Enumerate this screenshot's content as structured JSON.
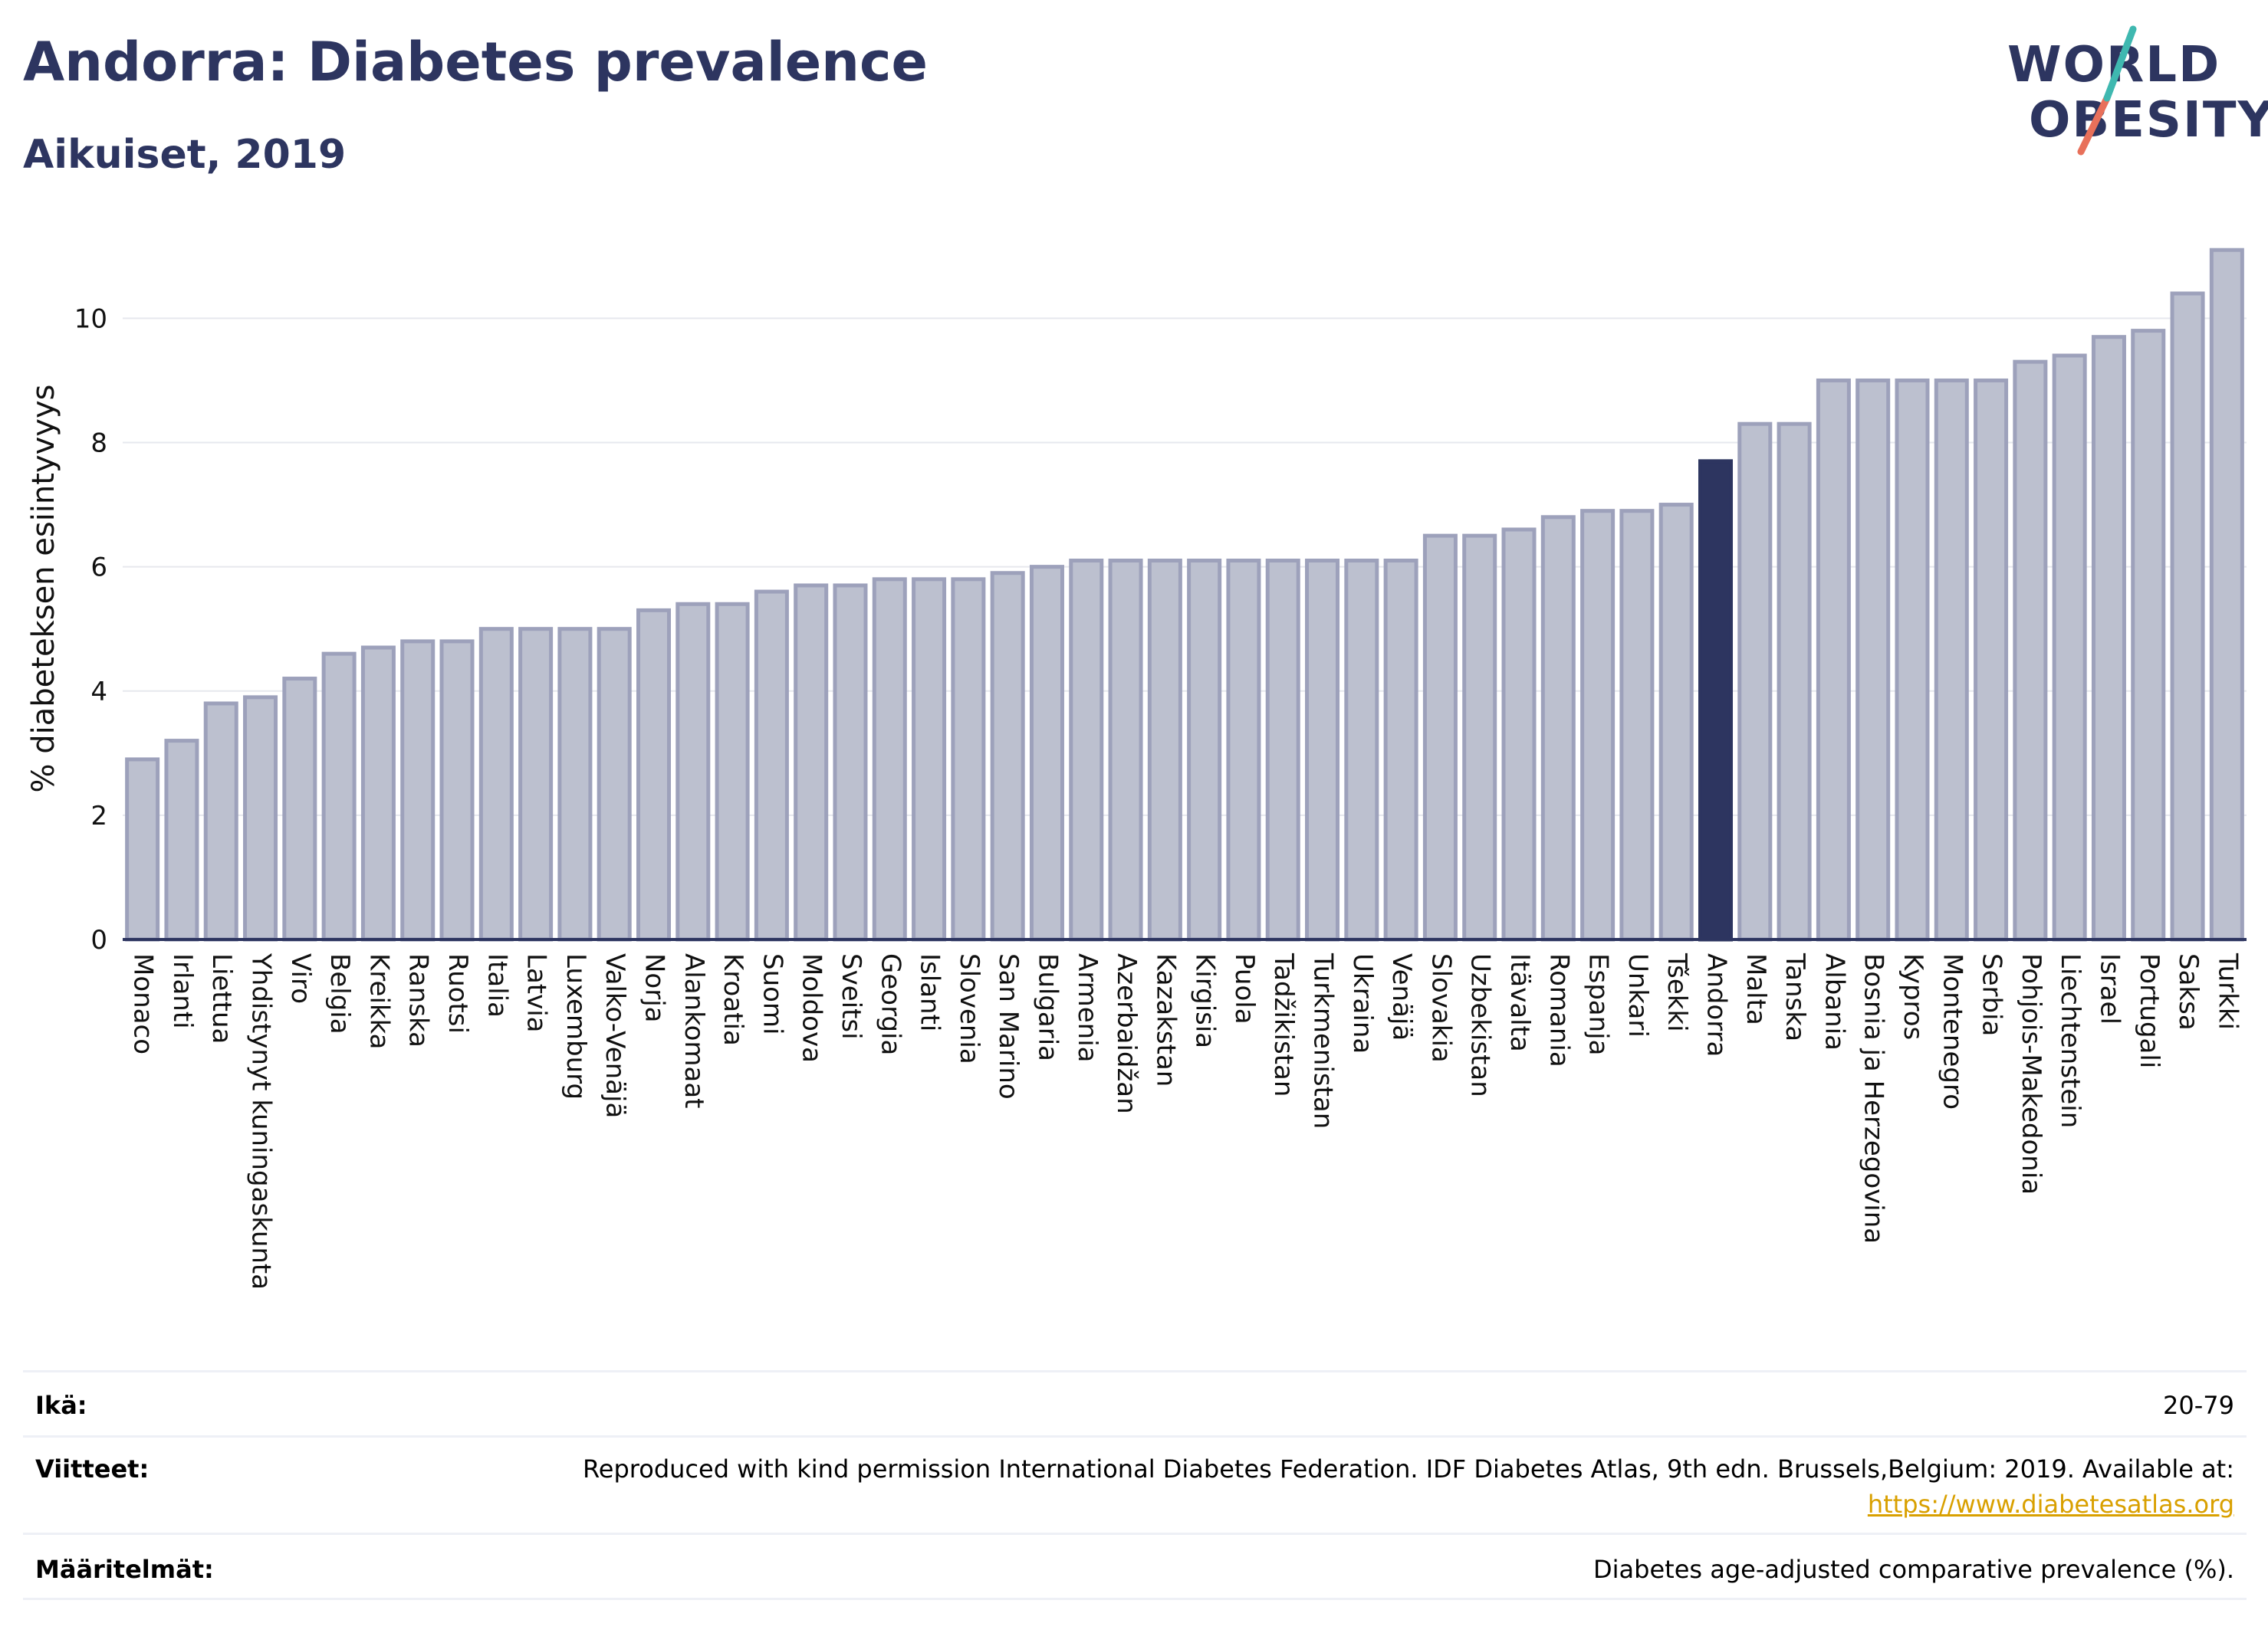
{
  "header": {
    "title": "Andorra: Diabetes prevalence",
    "subtitle": "Aikuiset, 2019"
  },
  "logo": {
    "line1": "WORLD",
    "line2": "OBESITY"
  },
  "colors": {
    "bar": "#bcc0cf",
    "bar_stroke": "#9da1bb",
    "highlight": "#2d3560",
    "title": "#2d3560",
    "link": "#d9a000",
    "logo_slash_teal": "#3fb8b0",
    "logo_slash_coral": "#e8705a"
  },
  "chart_data": {
    "type": "bar",
    "ylabel": "% diabeteksen esiintyvyys",
    "ylim": [
      0,
      11.3
    ],
    "yticks": [
      0,
      2,
      4,
      6,
      8,
      10
    ],
    "highlight": "Andorra",
    "categories": [
      "Monaco",
      "Irlanti",
      "Liettua",
      "Yhdistynyt kuningaskunta",
      "Viro",
      "Belgia",
      "Kreikka",
      "Ranska",
      "Ruotsi",
      "Italia",
      "Latvia",
      "Luxemburg",
      "Valko-Venäjä",
      "Norja",
      "Alankomaat",
      "Kroatia",
      "Suomi",
      "Moldova",
      "Sveitsi",
      "Georgia",
      "Islanti",
      "Slovenia",
      "San Marino",
      "Bulgaria",
      "Armenia",
      "Azerbaidžan",
      "Kazakstan",
      "Kirgisia",
      "Puola",
      "Tadžikistan",
      "Turkmenistan",
      "Ukraina",
      "Venäjä",
      "Slovakia",
      "Uzbekistan",
      "Itävalta",
      "Romania",
      "Espanja",
      "Unkari",
      "Tšekki",
      "Andorra",
      "Malta",
      "Tanska",
      "Albania",
      "Bosnia ja Herzegovina",
      "Kypros",
      "Montenegro",
      "Serbia",
      "Pohjois-Makedonia",
      "Liechtenstein",
      "Israel",
      "Portugali",
      "Saksa",
      "Turkki"
    ],
    "values": [
      2.9,
      3.2,
      3.8,
      3.9,
      4.2,
      4.6,
      4.7,
      4.8,
      4.8,
      5.0,
      5.0,
      5.0,
      5.0,
      5.3,
      5.4,
      5.4,
      5.6,
      5.7,
      5.7,
      5.8,
      5.8,
      5.8,
      5.9,
      6.0,
      6.1,
      6.1,
      6.1,
      6.1,
      6.1,
      6.1,
      6.1,
      6.1,
      6.1,
      6.5,
      6.5,
      6.6,
      6.8,
      6.9,
      6.9,
      7.0,
      7.7,
      8.3,
      8.3,
      9.0,
      9.0,
      9.0,
      9.0,
      9.0,
      9.3,
      9.4,
      9.7,
      9.8,
      10.4,
      11.1
    ]
  },
  "meta": {
    "age_label": "Ikä:",
    "age_value": "20-79",
    "refs_label": "Viitteet:",
    "refs_value": "Reproduced with kind permission International Diabetes Federation. IDF Diabetes Atlas, 9th edn. Brussels,Belgium: 2019. Available at:",
    "refs_link": "https://www.diabetesatlas.org",
    "defs_label": "Määritelmät:",
    "defs_value": "Diabetes age-adjusted comparative prevalence (%)."
  }
}
